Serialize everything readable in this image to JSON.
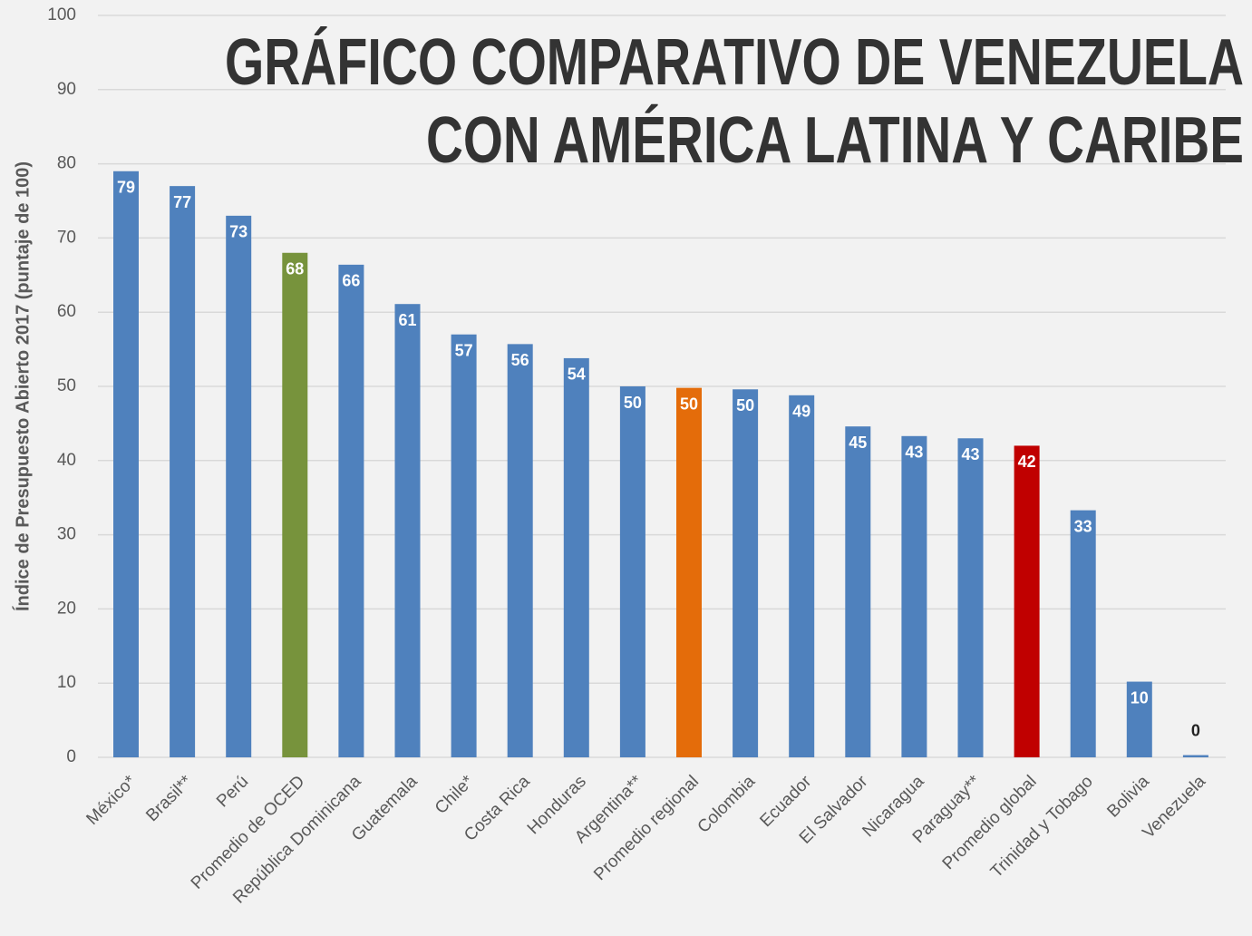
{
  "chart_data": {
    "type": "bar",
    "title": [
      "GRÁFICO COMPARATIVO DE VENEZUELA",
      "CON AMÉRICA LATINA Y CARIBE"
    ],
    "y_label": "Índice de Presupuesto Abierto 2017 (puntaje de 100)",
    "categories": [
      "México*",
      "Brasil**",
      "Perú",
      "Promedio de OCED",
      "República Dominicana",
      "Guatemala",
      "Chile*",
      "Costa Rica",
      "Honduras",
      "Argentina**",
      "Promedio regional",
      "Colombia",
      "Ecuador",
      "El Salvador",
      "Nicaragua",
      "Paraguay**",
      "Promedio global",
      "Trinidad y Tobago",
      "Bolivia",
      "Venezuela"
    ],
    "values": [
      79,
      77,
      73,
      68,
      66.4,
      61.1,
      57,
      55.7,
      53.8,
      50,
      49.8,
      49.6,
      48.8,
      44.6,
      43.3,
      43,
      42,
      33.3,
      10.2,
      0.3
    ],
    "value_labels": [
      "79",
      "77",
      "73",
      "68",
      "66",
      "61",
      "57",
      "56",
      "54",
      "50",
      "50",
      "50",
      "49",
      "45",
      "43",
      "43",
      "42",
      "33",
      "10",
      "0"
    ],
    "colors": [
      "#4f81bd",
      "#4f81bd",
      "#4f81bd",
      "#77933c",
      "#4f81bd",
      "#4f81bd",
      "#4f81bd",
      "#4f81bd",
      "#4f81bd",
      "#4f81bd",
      "#e46c0a",
      "#4f81bd",
      "#4f81bd",
      "#4f81bd",
      "#4f81bd",
      "#4f81bd",
      "#c00000",
      "#4f81bd",
      "#4f81bd",
      "#4f81bd"
    ],
    "ylim": [
      0,
      100
    ],
    "yticks": [
      0,
      10,
      20,
      30,
      40,
      50,
      60,
      70,
      80,
      90,
      100
    ],
    "grid": true
  }
}
